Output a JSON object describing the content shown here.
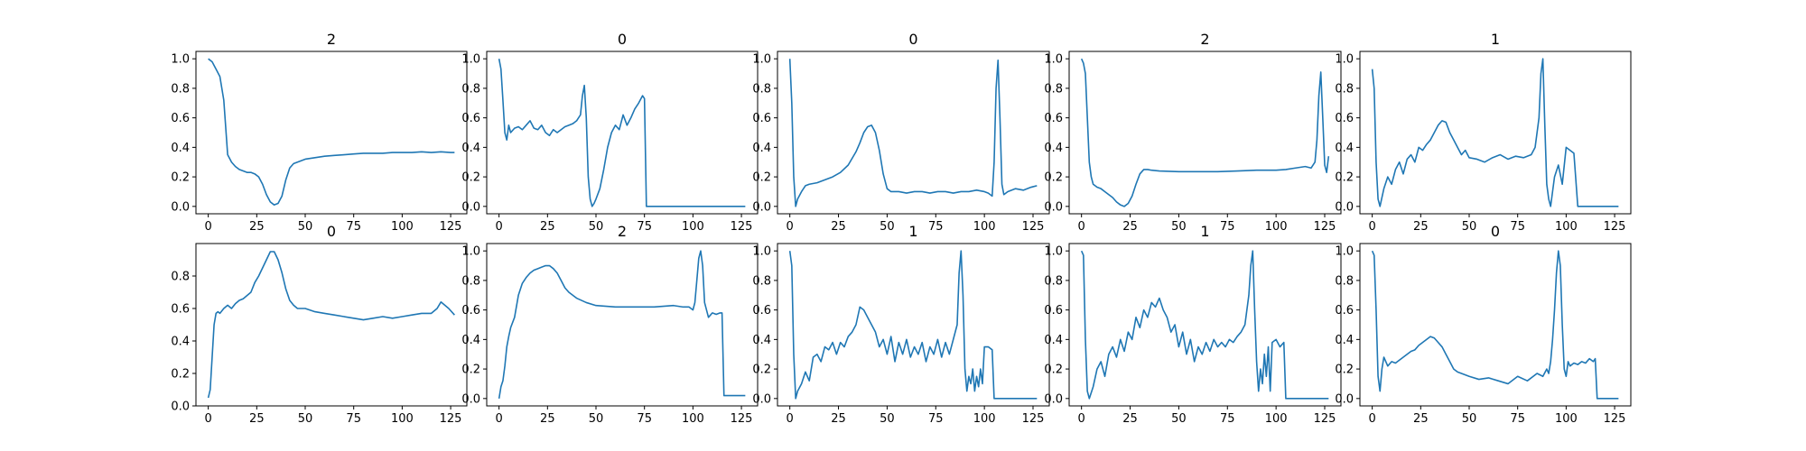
{
  "figure": {
    "background": "#ffffff",
    "line_color": "#1f77b4",
    "axis_color": "#000000"
  },
  "chart_data": [
    {
      "type": "line",
      "title": "2",
      "x": [
        0,
        2,
        4,
        6,
        8,
        10,
        12,
        14,
        16,
        18,
        20,
        22,
        24,
        26,
        28,
        30,
        32,
        34,
        36,
        38,
        40,
        42,
        44,
        46,
        48,
        50,
        55,
        60,
        65,
        70,
        75,
        80,
        85,
        90,
        95,
        100,
        105,
        110,
        115,
        120,
        125,
        127
      ],
      "y": [
        1.0,
        0.98,
        0.93,
        0.88,
        0.72,
        0.35,
        0.3,
        0.27,
        0.25,
        0.24,
        0.23,
        0.23,
        0.22,
        0.2,
        0.15,
        0.08,
        0.03,
        0.01,
        0.02,
        0.07,
        0.18,
        0.26,
        0.29,
        0.3,
        0.31,
        0.32,
        0.33,
        0.34,
        0.345,
        0.35,
        0.355,
        0.36,
        0.36,
        0.36,
        0.365,
        0.365,
        0.365,
        0.37,
        0.365,
        0.37,
        0.365,
        0.365
      ],
      "xticks": [
        0,
        25,
        50,
        75,
        100,
        125
      ],
      "xlim": [
        -6.35,
        133.35
      ],
      "yticks": [
        0.0,
        0.2,
        0.4,
        0.6,
        0.8,
        1.0
      ],
      "ytick_labels": [
        "0.0",
        "0.2",
        "0.4",
        "0.6",
        "0.8",
        "1.0"
      ],
      "ylim": [
        -0.05,
        1.05
      ]
    },
    {
      "type": "line",
      "title": "0",
      "x": [
        0,
        1,
        2,
        3,
        4,
        5,
        6,
        8,
        10,
        12,
        14,
        16,
        18,
        20,
        22,
        24,
        26,
        28,
        30,
        32,
        34,
        36,
        38,
        40,
        42,
        43,
        44,
        45,
        46,
        47,
        48,
        49,
        50,
        52,
        54,
        56,
        58,
        60,
        62,
        64,
        66,
        68,
        70,
        72,
        74,
        75,
        76,
        80,
        90,
        100,
        110,
        120,
        127
      ],
      "y": [
        1.0,
        0.93,
        0.72,
        0.5,
        0.45,
        0.55,
        0.5,
        0.53,
        0.54,
        0.52,
        0.55,
        0.58,
        0.53,
        0.52,
        0.55,
        0.5,
        0.48,
        0.52,
        0.5,
        0.52,
        0.54,
        0.55,
        0.56,
        0.58,
        0.62,
        0.75,
        0.82,
        0.6,
        0.2,
        0.05,
        0.0,
        0.02,
        0.05,
        0.12,
        0.25,
        0.4,
        0.5,
        0.55,
        0.52,
        0.62,
        0.55,
        0.6,
        0.66,
        0.7,
        0.75,
        0.73,
        0.0,
        0.0,
        0.0,
        0.0,
        0.0,
        0.0,
        0.0
      ],
      "xticks": [
        0,
        25,
        50,
        75,
        100,
        125
      ],
      "xlim": [
        -6.35,
        133.35
      ],
      "yticks": [
        0.0,
        0.2,
        0.4,
        0.6,
        0.8,
        1.0
      ],
      "ytick_labels": [
        "0.0",
        "0.2",
        "0.4",
        "0.6",
        "0.8",
        "1.0"
      ],
      "ylim": [
        -0.05,
        1.05
      ]
    },
    {
      "type": "line",
      "title": "0",
      "x": [
        0,
        1,
        2,
        3,
        4,
        6,
        8,
        10,
        14,
        18,
        22,
        26,
        30,
        34,
        36,
        38,
        40,
        42,
        44,
        46,
        48,
        50,
        52,
        56,
        60,
        64,
        68,
        72,
        76,
        80,
        84,
        88,
        92,
        96,
        100,
        102,
        104,
        105,
        106,
        107,
        108,
        109,
        110,
        112,
        116,
        120,
        124,
        127
      ],
      "y": [
        1.0,
        0.7,
        0.2,
        0.0,
        0.05,
        0.1,
        0.14,
        0.15,
        0.16,
        0.18,
        0.2,
        0.23,
        0.28,
        0.37,
        0.43,
        0.5,
        0.54,
        0.55,
        0.5,
        0.38,
        0.22,
        0.12,
        0.1,
        0.1,
        0.09,
        0.1,
        0.1,
        0.09,
        0.1,
        0.1,
        0.09,
        0.1,
        0.1,
        0.11,
        0.1,
        0.09,
        0.07,
        0.3,
        0.8,
        0.99,
        0.6,
        0.15,
        0.08,
        0.1,
        0.12,
        0.11,
        0.13,
        0.14
      ],
      "xticks": [
        0,
        25,
        50,
        75,
        100,
        125
      ],
      "xlim": [
        -6.35,
        133.35
      ],
      "yticks": [
        0.0,
        0.2,
        0.4,
        0.6,
        0.8,
        1.0
      ],
      "ytick_labels": [
        "0.0",
        "0.2",
        "0.4",
        "0.6",
        "0.8",
        "1.0"
      ],
      "ylim": [
        -0.05,
        1.05
      ]
    },
    {
      "type": "line",
      "title": "2",
      "x": [
        0,
        1,
        2,
        3,
        4,
        5,
        6,
        8,
        10,
        12,
        14,
        16,
        18,
        20,
        22,
        24,
        26,
        28,
        30,
        32,
        34,
        36,
        40,
        50,
        60,
        70,
        80,
        90,
        100,
        105,
        110,
        115,
        118,
        120,
        121,
        122,
        123,
        124,
        125,
        126,
        127
      ],
      "y": [
        1.0,
        0.97,
        0.9,
        0.6,
        0.3,
        0.2,
        0.15,
        0.13,
        0.12,
        0.1,
        0.08,
        0.06,
        0.03,
        0.01,
        0.0,
        0.02,
        0.07,
        0.15,
        0.22,
        0.25,
        0.25,
        0.245,
        0.24,
        0.235,
        0.235,
        0.235,
        0.24,
        0.245,
        0.245,
        0.25,
        0.26,
        0.27,
        0.26,
        0.3,
        0.45,
        0.75,
        0.91,
        0.6,
        0.28,
        0.23,
        0.34
      ],
      "xticks": [
        0,
        25,
        50,
        75,
        100,
        125
      ],
      "xlim": [
        -6.35,
        133.35
      ],
      "yticks": [
        0.0,
        0.2,
        0.4,
        0.6,
        0.8,
        1.0
      ],
      "ytick_labels": [
        "0.0",
        "0.2",
        "0.4",
        "0.6",
        "0.8",
        "1.0"
      ],
      "ylim": [
        -0.05,
        1.05
      ]
    },
    {
      "type": "line",
      "title": "1",
      "x": [
        0,
        1,
        2,
        3,
        4,
        6,
        8,
        10,
        12,
        14,
        16,
        18,
        20,
        22,
        24,
        26,
        28,
        30,
        32,
        34,
        36,
        38,
        40,
        42,
        44,
        46,
        48,
        50,
        54,
        58,
        62,
        66,
        70,
        74,
        78,
        82,
        84,
        86,
        87,
        88,
        89,
        90,
        91,
        92,
        93,
        94,
        96,
        98,
        100,
        102,
        104,
        106,
        110,
        120,
        127
      ],
      "y": [
        0.93,
        0.8,
        0.3,
        0.05,
        0.0,
        0.12,
        0.2,
        0.15,
        0.25,
        0.3,
        0.22,
        0.32,
        0.35,
        0.3,
        0.4,
        0.38,
        0.42,
        0.45,
        0.5,
        0.55,
        0.58,
        0.57,
        0.5,
        0.45,
        0.4,
        0.35,
        0.38,
        0.33,
        0.32,
        0.3,
        0.33,
        0.35,
        0.32,
        0.34,
        0.33,
        0.35,
        0.4,
        0.6,
        0.9,
        1.0,
        0.55,
        0.15,
        0.05,
        0.0,
        0.1,
        0.2,
        0.28,
        0.15,
        0.4,
        0.38,
        0.36,
        0.0,
        0.0,
        0.0,
        0.0
      ],
      "xticks": [
        0,
        25,
        50,
        75,
        100,
        125
      ],
      "xlim": [
        -6.35,
        133.35
      ],
      "yticks": [
        0.0,
        0.2,
        0.4,
        0.6,
        0.8,
        1.0
      ],
      "ytick_labels": [
        "0.0",
        "0.2",
        "0.4",
        "0.6",
        "0.8",
        "1.0"
      ],
      "ylim": [
        -0.05,
        1.05
      ]
    },
    {
      "type": "line",
      "title": "0",
      "x": [
        0,
        1,
        2,
        3,
        4,
        5,
        6,
        8,
        10,
        12,
        14,
        16,
        18,
        20,
        22,
        24,
        26,
        28,
        30,
        32,
        34,
        36,
        38,
        40,
        42,
        44,
        46,
        50,
        55,
        60,
        65,
        70,
        75,
        80,
        85,
        90,
        95,
        100,
        105,
        110,
        115,
        118,
        120,
        122,
        124,
        127
      ],
      "y": [
        0.05,
        0.1,
        0.3,
        0.5,
        0.57,
        0.58,
        0.57,
        0.6,
        0.62,
        0.6,
        0.63,
        0.65,
        0.66,
        0.68,
        0.7,
        0.76,
        0.8,
        0.85,
        0.9,
        0.95,
        0.95,
        0.9,
        0.82,
        0.72,
        0.65,
        0.62,
        0.6,
        0.6,
        0.58,
        0.57,
        0.56,
        0.55,
        0.54,
        0.53,
        0.54,
        0.55,
        0.54,
        0.55,
        0.56,
        0.57,
        0.57,
        0.6,
        0.64,
        0.62,
        0.6,
        0.56
      ],
      "xticks": [
        0,
        25,
        50,
        75,
        100,
        125
      ],
      "xlim": [
        -6.35,
        133.35
      ],
      "yticks": [
        0.0,
        0.2,
        0.4,
        0.6,
        0.8
      ],
      "ytick_labels": [
        "0.0",
        "0.2",
        "0.4",
        "0.6",
        "0.8"
      ],
      "ylim": [
        0.0,
        1.0
      ]
    },
    {
      "type": "line",
      "title": "2",
      "x": [
        0,
        1,
        2,
        3,
        4,
        5,
        6,
        8,
        10,
        12,
        14,
        16,
        18,
        20,
        22,
        24,
        26,
        28,
        30,
        32,
        34,
        36,
        38,
        40,
        45,
        50,
        60,
        70,
        80,
        90,
        95,
        98,
        100,
        101,
        102,
        103,
        104,
        105,
        106,
        108,
        110,
        112,
        114,
        115,
        116,
        120,
        125,
        127
      ],
      "y": [
        0.0,
        0.08,
        0.12,
        0.22,
        0.35,
        0.42,
        0.48,
        0.55,
        0.7,
        0.78,
        0.82,
        0.85,
        0.87,
        0.88,
        0.89,
        0.9,
        0.9,
        0.88,
        0.85,
        0.8,
        0.75,
        0.72,
        0.7,
        0.68,
        0.65,
        0.63,
        0.62,
        0.62,
        0.62,
        0.63,
        0.62,
        0.62,
        0.6,
        0.65,
        0.8,
        0.95,
        1.0,
        0.9,
        0.65,
        0.55,
        0.58,
        0.57,
        0.58,
        0.58,
        0.02,
        0.02,
        0.02,
        0.02
      ],
      "xticks": [
        0,
        25,
        50,
        75,
        100,
        125
      ],
      "xlim": [
        -6.35,
        133.35
      ],
      "yticks": [
        0.0,
        0.2,
        0.4,
        0.6,
        0.8,
        1.0
      ],
      "ytick_labels": [
        "0.0",
        "0.2",
        "0.4",
        "0.6",
        "0.8",
        "1.0"
      ],
      "ylim": [
        -0.05,
        1.05
      ]
    },
    {
      "type": "line",
      "title": "1",
      "x": [
        0,
        1,
        2,
        3,
        4,
        6,
        8,
        10,
        12,
        14,
        16,
        18,
        20,
        22,
        24,
        26,
        28,
        30,
        32,
        34,
        36,
        38,
        40,
        42,
        44,
        46,
        48,
        50,
        52,
        54,
        56,
        58,
        60,
        62,
        64,
        66,
        68,
        70,
        72,
        74,
        76,
        78,
        80,
        82,
        84,
        86,
        87,
        88,
        89,
        90,
        91,
        92,
        93,
        94,
        95,
        96,
        97,
        98,
        99,
        100,
        102,
        104,
        105,
        106,
        110,
        120,
        127
      ],
      "y": [
        1.0,
        0.9,
        0.3,
        0.0,
        0.05,
        0.1,
        0.18,
        0.12,
        0.28,
        0.3,
        0.25,
        0.35,
        0.33,
        0.38,
        0.3,
        0.38,
        0.35,
        0.42,
        0.45,
        0.5,
        0.62,
        0.6,
        0.55,
        0.5,
        0.45,
        0.35,
        0.4,
        0.3,
        0.42,
        0.25,
        0.38,
        0.3,
        0.4,
        0.28,
        0.35,
        0.3,
        0.38,
        0.25,
        0.35,
        0.3,
        0.4,
        0.28,
        0.38,
        0.3,
        0.4,
        0.5,
        0.85,
        1.0,
        0.7,
        0.2,
        0.05,
        0.15,
        0.1,
        0.2,
        0.05,
        0.15,
        0.08,
        0.2,
        0.1,
        0.35,
        0.35,
        0.33,
        0.0,
        0.0,
        0.0,
        0.0,
        0.0
      ],
      "xticks": [
        0,
        25,
        50,
        75,
        100,
        125
      ],
      "xlim": [
        -6.35,
        133.35
      ],
      "yticks": [
        0.0,
        0.2,
        0.4,
        0.6,
        0.8,
        1.0
      ],
      "ytick_labels": [
        "0.0",
        "0.2",
        "0.4",
        "0.6",
        "0.8",
        "1.0"
      ],
      "ylim": [
        -0.05,
        1.05
      ]
    },
    {
      "type": "line",
      "title": "1",
      "x": [
        0,
        1,
        2,
        3,
        4,
        6,
        8,
        10,
        12,
        14,
        16,
        18,
        20,
        22,
        24,
        26,
        28,
        30,
        32,
        34,
        36,
        38,
        40,
        42,
        44,
        46,
        48,
        50,
        52,
        54,
        56,
        58,
        60,
        62,
        64,
        66,
        68,
        70,
        72,
        74,
        76,
        78,
        80,
        82,
        84,
        86,
        87,
        88,
        89,
        90,
        91,
        92,
        93,
        94,
        95,
        96,
        97,
        98,
        100,
        102,
        104,
        105,
        106,
        110,
        120,
        127
      ],
      "y": [
        1.0,
        0.97,
        0.4,
        0.05,
        0.0,
        0.08,
        0.2,
        0.25,
        0.15,
        0.3,
        0.35,
        0.28,
        0.4,
        0.32,
        0.45,
        0.4,
        0.55,
        0.48,
        0.6,
        0.55,
        0.65,
        0.62,
        0.68,
        0.6,
        0.55,
        0.45,
        0.5,
        0.35,
        0.45,
        0.3,
        0.4,
        0.25,
        0.35,
        0.3,
        0.38,
        0.32,
        0.4,
        0.35,
        0.38,
        0.35,
        0.4,
        0.38,
        0.42,
        0.45,
        0.5,
        0.7,
        0.9,
        1.0,
        0.6,
        0.25,
        0.05,
        0.2,
        0.1,
        0.3,
        0.15,
        0.35,
        0.05,
        0.38,
        0.4,
        0.35,
        0.38,
        0.0,
        0.0,
        0.0,
        0.0,
        0.0
      ],
      "xticks": [
        0,
        25,
        50,
        75,
        100,
        125
      ],
      "xlim": [
        -6.35,
        133.35
      ],
      "yticks": [
        0.0,
        0.2,
        0.4,
        0.6,
        0.8,
        1.0
      ],
      "ytick_labels": [
        "0.0",
        "0.2",
        "0.4",
        "0.6",
        "0.8",
        "1.0"
      ],
      "ylim": [
        -0.05,
        1.05
      ]
    },
    {
      "type": "line",
      "title": "0",
      "x": [
        0,
        1,
        2,
        3,
        4,
        5,
        6,
        8,
        10,
        12,
        14,
        16,
        18,
        20,
        22,
        24,
        26,
        28,
        30,
        32,
        34,
        36,
        38,
        40,
        42,
        44,
        46,
        50,
        55,
        60,
        65,
        70,
        75,
        80,
        85,
        88,
        90,
        91,
        92,
        93,
        94,
        95,
        96,
        97,
        98,
        99,
        100,
        101,
        102,
        104,
        106,
        108,
        110,
        112,
        114,
        115,
        116,
        120,
        125,
        127
      ],
      "y": [
        1.0,
        0.97,
        0.6,
        0.15,
        0.05,
        0.2,
        0.28,
        0.22,
        0.25,
        0.24,
        0.26,
        0.28,
        0.3,
        0.32,
        0.33,
        0.36,
        0.38,
        0.4,
        0.42,
        0.41,
        0.38,
        0.35,
        0.3,
        0.25,
        0.2,
        0.18,
        0.17,
        0.15,
        0.13,
        0.14,
        0.12,
        0.1,
        0.15,
        0.12,
        0.17,
        0.15,
        0.2,
        0.17,
        0.25,
        0.4,
        0.6,
        0.85,
        1.0,
        0.9,
        0.5,
        0.2,
        0.15,
        0.25,
        0.22,
        0.24,
        0.23,
        0.25,
        0.24,
        0.27,
        0.25,
        0.27,
        0.0,
        0.0,
        0.0,
        0.0
      ],
      "xticks": [
        0,
        25,
        50,
        75,
        100,
        125
      ],
      "xlim": [
        -6.35,
        133.35
      ],
      "yticks": [
        0.0,
        0.2,
        0.4,
        0.6,
        0.8,
        1.0
      ],
      "ytick_labels": [
        "0.0",
        "0.2",
        "0.4",
        "0.6",
        "0.8",
        "1.0"
      ],
      "ylim": [
        -0.05,
        1.05
      ]
    }
  ]
}
